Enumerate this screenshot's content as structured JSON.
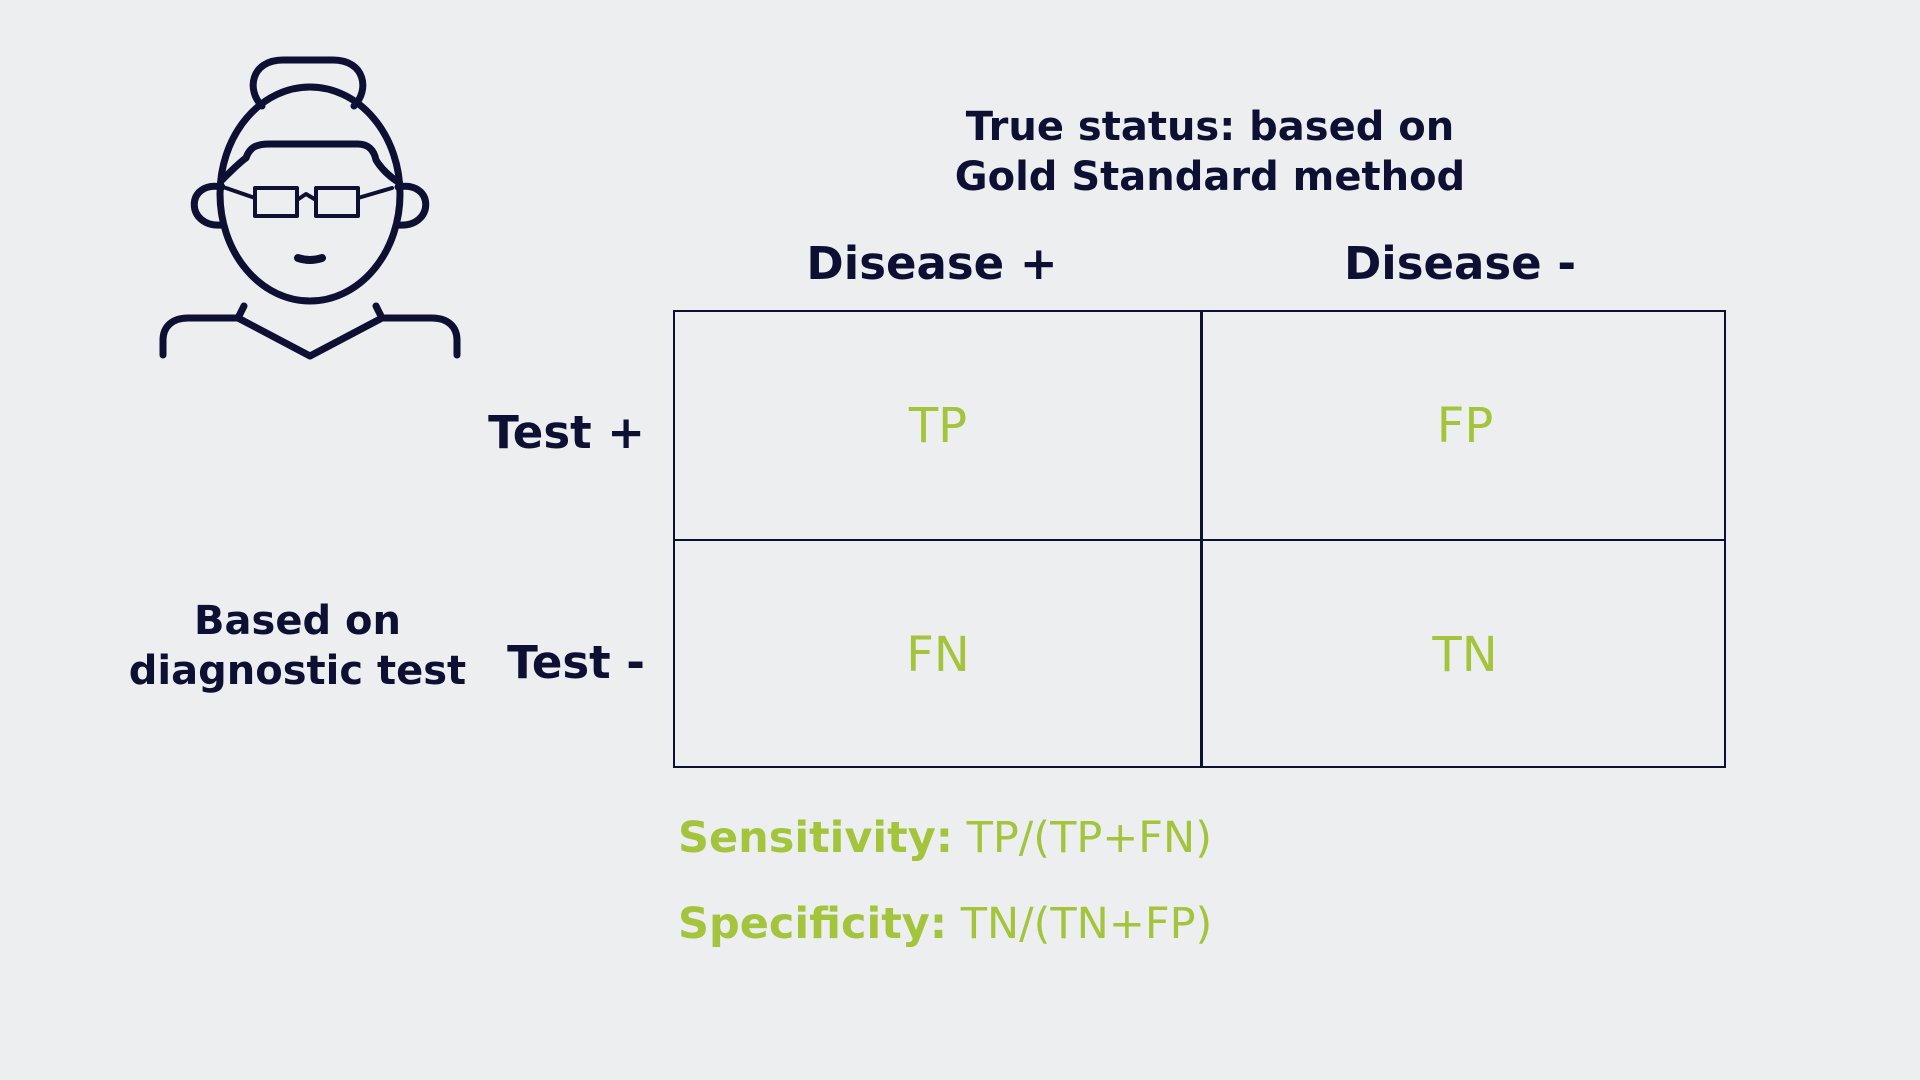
{
  "true_status": {
    "line1": "True status: based on",
    "line2": "Gold Standard method"
  },
  "columns": {
    "positive": "Disease +",
    "negative": "Disease -"
  },
  "rows": {
    "positive": "Test +",
    "negative": "Test -"
  },
  "test_basis": {
    "line1": "Based on",
    "line2": "diagnostic test"
  },
  "matrix": {
    "tp": "TP",
    "fp": "FP",
    "fn": "FN",
    "tn": "TN"
  },
  "formulas": {
    "sensitivity_label": "Sensitivity:",
    "sensitivity_expr": "TP/(TP+FN)",
    "specificity_label": "Specificity:",
    "specificity_expr": "TN/(TN+FP)"
  },
  "colors": {
    "background": "#eceef0",
    "dark": "#0d1033",
    "accent": "#a4c43b"
  },
  "icons": {
    "avatar": "person-with-glasses-icon"
  }
}
